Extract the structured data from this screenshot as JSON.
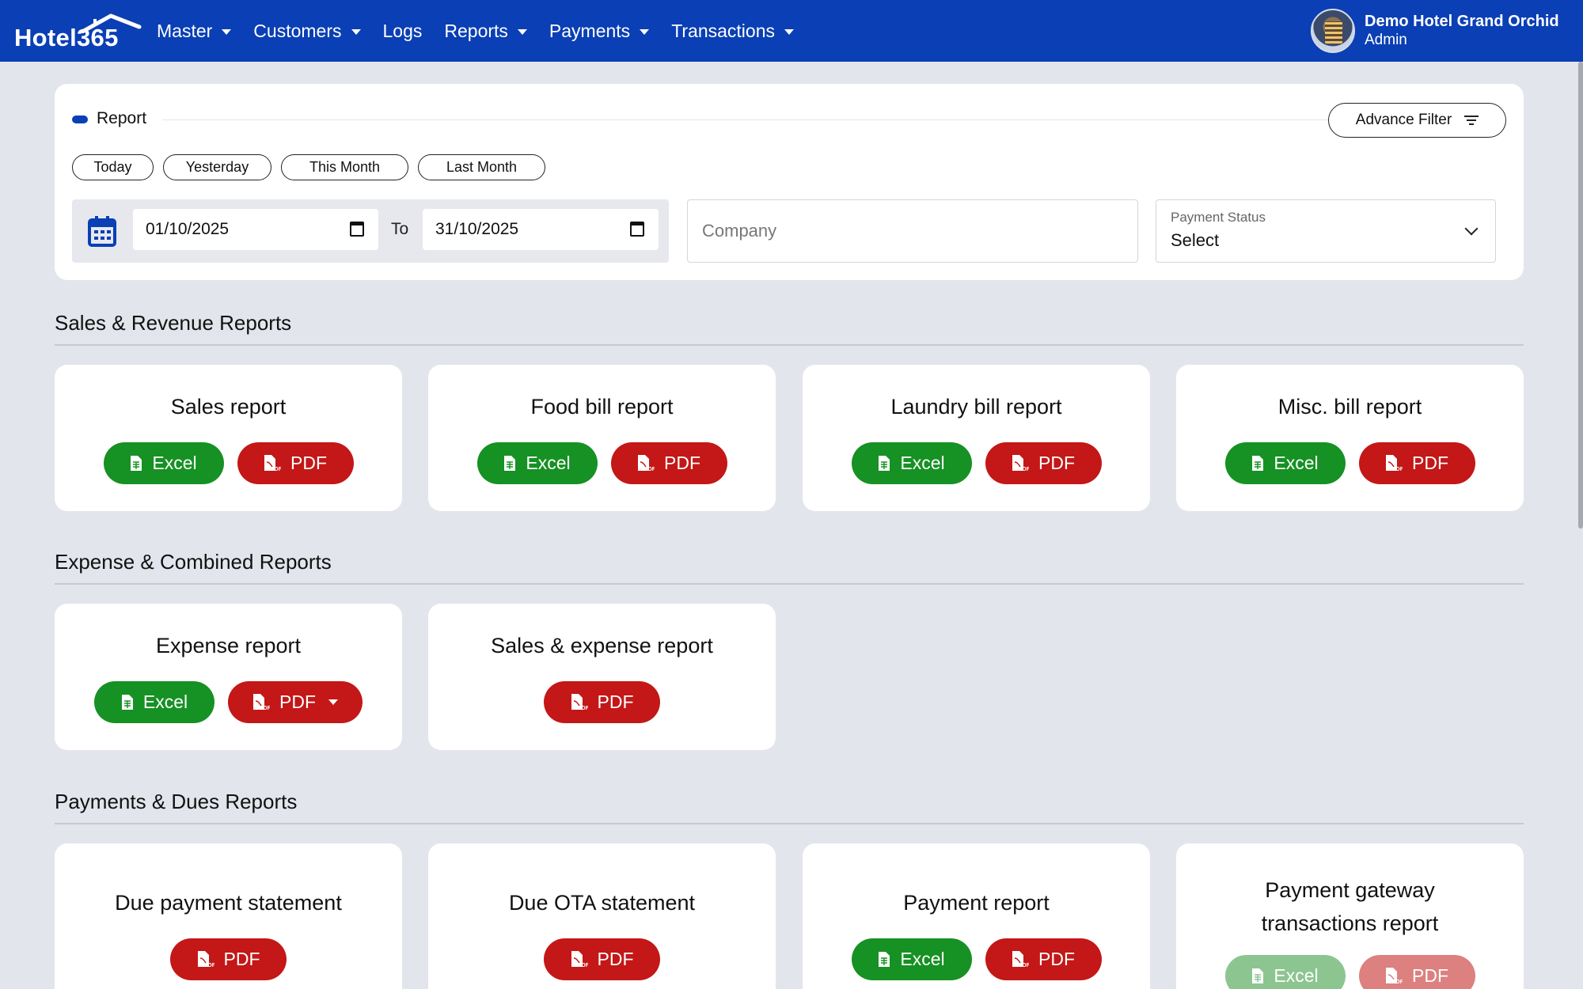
{
  "brand": {
    "name": "Hotel365"
  },
  "nav": {
    "items": [
      {
        "label": "Master",
        "dropdown": true
      },
      {
        "label": "Customers",
        "dropdown": true
      },
      {
        "label": "Logs",
        "dropdown": false
      },
      {
        "label": "Reports",
        "dropdown": true
      },
      {
        "label": "Payments",
        "dropdown": true
      },
      {
        "label": "Transactions",
        "dropdown": true
      }
    ]
  },
  "user": {
    "name": "Demo Hotel Grand Orchid",
    "role": "Admin"
  },
  "filter": {
    "title": "Report",
    "advance_filter_label": "Advance Filter",
    "quick_ranges": [
      "Today",
      "Yesterday",
      "This Month",
      "Last Month"
    ],
    "from_date": "01/10/2025",
    "to_label": "To",
    "to_date": "31/10/2025",
    "company_placeholder": "Company",
    "payment_status": {
      "label": "Payment Status",
      "value": "Select"
    }
  },
  "sections": [
    {
      "title": "Sales & Revenue Reports",
      "cards": [
        {
          "title": "Sales report",
          "excel": "Excel",
          "pdf": "PDF"
        },
        {
          "title": "Food bill report",
          "excel": "Excel",
          "pdf": "PDF"
        },
        {
          "title": "Laundry bill report",
          "excel": "Excel",
          "pdf": "PDF"
        },
        {
          "title": "Misc. bill report",
          "excel": "Excel",
          "pdf": "PDF"
        }
      ]
    },
    {
      "title": "Expense & Combined Reports",
      "cards": [
        {
          "title": "Expense report",
          "excel": "Excel",
          "pdf": "PDF"
        },
        {
          "title": "Sales & expense report",
          "pdf": "PDF"
        }
      ]
    },
    {
      "title": "Payments & Dues Reports",
      "cards": [
        {
          "title": "Due payment statement",
          "pdf": "PDF"
        },
        {
          "title": "Due OTA statement",
          "pdf": "PDF"
        },
        {
          "title": "Payment report",
          "excel": "Excel",
          "pdf": "PDF"
        },
        {
          "title_line1": "Payment gateway",
          "title_line2": "transactions report",
          "excel": "Excel",
          "pdf": "PDF"
        }
      ]
    }
  ],
  "colors": {
    "nav_bg": "#0a3fb5",
    "excel_green": "#169123",
    "pdf_red": "#c41717",
    "page_bg": "#e3e5ec"
  }
}
